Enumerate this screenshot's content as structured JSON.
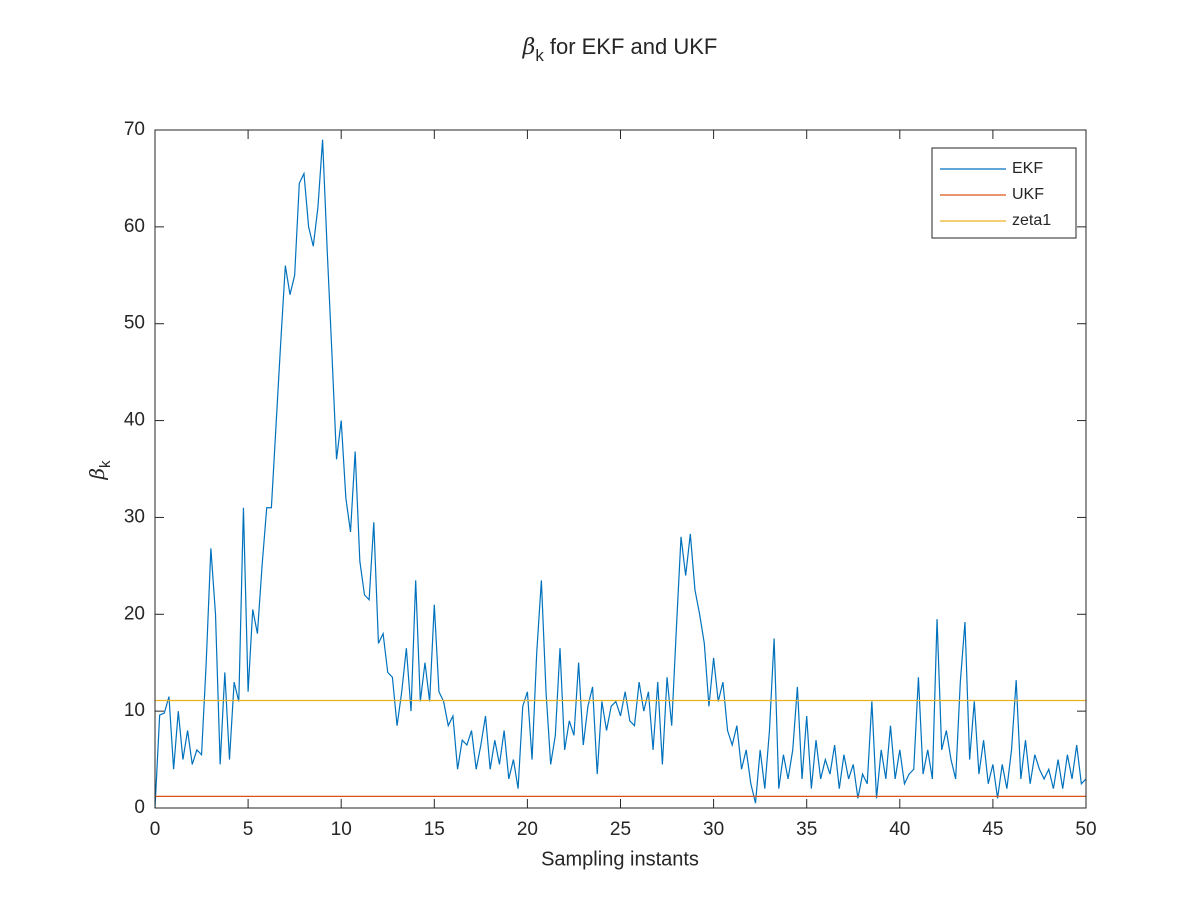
{
  "chart_data": {
    "type": "line",
    "title": {
      "symbol": "β",
      "subscript": "k",
      "text": "for EKF and UKF"
    },
    "xlabel": "Sampling instants",
    "ylabel": {
      "symbol": "β",
      "subscript": "k"
    },
    "xlim": [
      0,
      50
    ],
    "xticks": [
      0,
      5,
      10,
      15,
      20,
      25,
      30,
      35,
      40,
      45,
      50
    ],
    "ylim": [
      0,
      70
    ],
    "yticks": [
      0,
      10,
      20,
      30,
      40,
      50,
      60,
      70
    ],
    "legend": "top-right",
    "series": [
      {
        "name": "EKF",
        "color": "#0072bd",
        "x": [
          0,
          0.25,
          0.5,
          0.75,
          1,
          1.25,
          1.5,
          1.75,
          2,
          2.25,
          2.5,
          2.75,
          3,
          3.25,
          3.5,
          3.75,
          4,
          4.25,
          4.5,
          4.75,
          5,
          5.25,
          5.5,
          5.75,
          6,
          6.25,
          6.5,
          6.75,
          7,
          7.25,
          7.5,
          7.75,
          8,
          8.25,
          8.5,
          8.75,
          9,
          9.25,
          9.5,
          9.75,
          10,
          10.25,
          10.5,
          10.75,
          11,
          11.25,
          11.5,
          11.75,
          12,
          12.25,
          12.5,
          12.75,
          13,
          13.25,
          13.5,
          13.75,
          14,
          14.25,
          14.5,
          14.75,
          15,
          15.25,
          15.5,
          15.75,
          16,
          16.25,
          16.5,
          16.75,
          17,
          17.25,
          17.5,
          17.75,
          18,
          18.25,
          18.5,
          18.75,
          19,
          19.25,
          19.5,
          19.75,
          20,
          20.25,
          20.5,
          20.75,
          21,
          21.25,
          21.5,
          21.75,
          22,
          22.25,
          22.5,
          22.75,
          23,
          23.25,
          23.5,
          23.75,
          24,
          24.25,
          24.5,
          24.75,
          25,
          25.25,
          25.5,
          25.75,
          26,
          26.25,
          26.5,
          26.75,
          27,
          27.25,
          27.5,
          27.75,
          28,
          28.25,
          28.5,
          28.75,
          29,
          29.25,
          29.5,
          29.75,
          30,
          30.25,
          30.5,
          30.75,
          31,
          31.25,
          31.5,
          31.75,
          32,
          32.25,
          32.5,
          32.75,
          33,
          33.25,
          33.5,
          33.75,
          34,
          34.25,
          34.5,
          34.75,
          35,
          35.25,
          35.5,
          35.75,
          36,
          36.25,
          36.5,
          36.75,
          37,
          37.25,
          37.5,
          37.75,
          38,
          38.25,
          38.5,
          38.75,
          39,
          39.25,
          39.5,
          39.75,
          40,
          40.25,
          40.5,
          40.75,
          41,
          41.25,
          41.5,
          41.75,
          42,
          42.25,
          42.5,
          42.75,
          43,
          43.25,
          43.5,
          43.75,
          44,
          44.25,
          44.5,
          44.75,
          45,
          45.25,
          45.5,
          45.75,
          46,
          46.25,
          46.5,
          46.75,
          47,
          47.25,
          47.5,
          47.75,
          48,
          48.25,
          48.5,
          48.75,
          49,
          49.25,
          49.5,
          49.75,
          50
        ],
        "values": [
          0,
          9.6,
          9.8,
          11.5,
          4,
          10,
          5,
          8,
          4.5,
          6,
          5.5,
          15,
          26.8,
          20,
          4.5,
          14,
          5,
          13,
          11,
          31,
          12,
          20.5,
          18,
          25,
          31,
          31,
          39.5,
          48,
          56,
          53,
          55,
          64.5,
          65.5,
          60,
          58,
          62,
          69,
          57.5,
          47,
          36,
          40,
          32,
          28.5,
          36.8,
          25.5,
          22,
          21.5,
          29.5,
          17,
          18,
          14,
          13.5,
          8.5,
          12,
          16.5,
          10,
          23.5,
          11,
          15,
          11,
          21,
          12,
          11,
          8.5,
          9.5,
          4,
          7,
          6.5,
          8,
          4,
          6.5,
          9.5,
          4,
          7,
          4.5,
          8,
          3,
          5,
          2,
          10.5,
          12,
          5,
          16,
          23.5,
          12,
          4.5,
          7.5,
          16.5,
          6,
          9,
          7.5,
          15,
          6.5,
          10.5,
          12.5,
          3.5,
          11,
          8,
          10.5,
          11,
          9.5,
          12,
          9,
          8.5,
          13,
          10,
          12,
          6,
          13,
          4.5,
          13.5,
          8.5,
          18.5,
          28,
          24,
          28.3,
          22.5,
          20,
          17,
          10.5,
          15.5,
          11,
          13,
          8,
          6.5,
          8.5,
          4,
          6,
          2.5,
          0.5,
          6,
          2,
          8,
          17.5,
          2,
          5.5,
          3,
          6,
          12.5,
          3,
          9.5,
          2,
          7,
          3,
          5,
          3.5,
          6.5,
          2,
          5.5,
          3,
          4.5,
          1,
          3.5,
          2.5,
          11,
          1,
          6,
          3,
          8.5,
          3,
          6,
          2.5,
          3.5,
          4,
          13.5,
          3.5,
          6,
          3,
          19.5,
          6,
          8,
          5,
          3,
          13,
          19.2,
          5,
          11,
          3.5,
          7,
          2.5,
          4.5,
          1,
          4.5,
          2,
          6,
          13.2,
          3,
          7,
          2.5,
          5.5,
          4,
          3,
          4,
          2,
          5,
          2,
          5.5,
          3,
          6.5,
          2.5,
          3
        ]
      },
      {
        "name": "UKF",
        "color": "#d95319",
        "x": [
          0,
          50
        ],
        "values": [
          1.2,
          1.2
        ]
      },
      {
        "name": "zeta1",
        "color": "#edb120",
        "x": [
          0,
          50
        ],
        "values": [
          11.1,
          11.1
        ]
      }
    ]
  }
}
